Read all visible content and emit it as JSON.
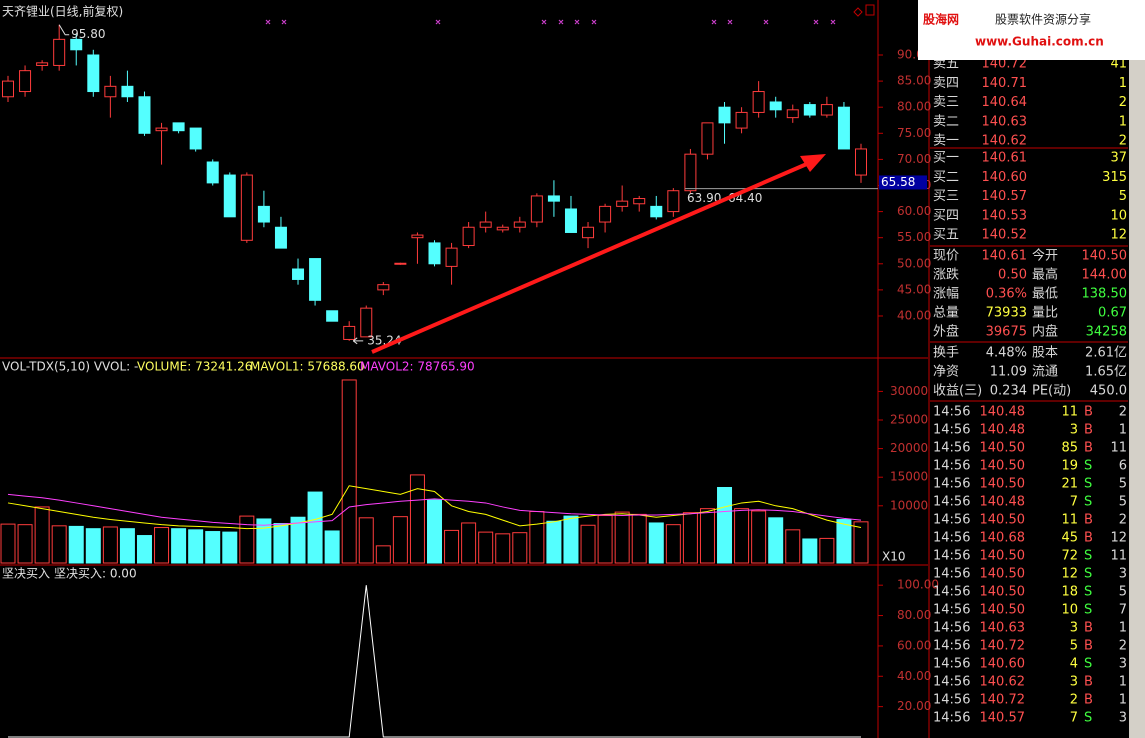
{
  "title": "天齐锂业(日线,前复权)",
  "price_chart": {
    "type": "candlestick",
    "ylim": [
      31.95,
      99.58
    ],
    "yticks": [
      {
        "value": 40,
        "label": "40.00"
      },
      {
        "value": 45,
        "label": "45.00"
      },
      {
        "value": 50,
        "label": "50.00"
      },
      {
        "value": 55,
        "label": "55.00"
      },
      {
        "value": 60,
        "label": "60.00"
      },
      {
        "value": 65,
        "label": "65.00"
      },
      {
        "value": 70,
        "label": "70.00"
      },
      {
        "value": 75,
        "label": "75.00"
      },
      {
        "value": 80,
        "label": "80.00"
      },
      {
        "value": 85,
        "label": "85.00"
      },
      {
        "value": 90,
        "label": "90.00"
      }
    ],
    "up_color": "#ff3c3c",
    "down_color": "#54ffff",
    "candles": [
      {
        "open": 82,
        "high": 86,
        "low": 81,
        "close": 85
      },
      {
        "open": 83,
        "high": 88,
        "low": 82,
        "close": 87
      },
      {
        "open": 88,
        "high": 89,
        "low": 87,
        "close": 88.5
      },
      {
        "open": 88,
        "high": 95.8,
        "low": 87,
        "close": 93
      },
      {
        "open": 93,
        "high": 94,
        "low": 88,
        "close": 91
      },
      {
        "open": 90,
        "high": 91,
        "low": 82,
        "close": 83
      },
      {
        "open": 82,
        "high": 86,
        "low": 78,
        "close": 84
      },
      {
        "open": 84,
        "high": 87,
        "low": 81,
        "close": 82
      },
      {
        "open": 82,
        "high": 83,
        "low": 74.5,
        "close": 75
      },
      {
        "open": 75.5,
        "high": 77,
        "low": 69,
        "close": 76
      },
      {
        "open": 77,
        "high": 77,
        "low": 75,
        "close": 75.5
      },
      {
        "open": 76,
        "high": 76,
        "low": 71.5,
        "close": 72
      },
      {
        "open": 69.5,
        "high": 70,
        "low": 65,
        "close": 65.5
      },
      {
        "open": 67,
        "high": 67.5,
        "low": 59,
        "close": 59
      },
      {
        "open": 54.5,
        "high": 67.5,
        "low": 54,
        "close": 67
      },
      {
        "open": 61,
        "high": 64,
        "low": 57,
        "close": 58
      },
      {
        "open": 57,
        "high": 59,
        "low": 53,
        "close": 53
      },
      {
        "open": 49,
        "high": 51,
        "low": 46,
        "close": 47
      },
      {
        "open": 51,
        "high": 51,
        "low": 42,
        "close": 43
      },
      {
        "open": 41,
        "high": 41,
        "low": 39,
        "close": 39
      },
      {
        "open": 35.5,
        "high": 39,
        "low": 35.24,
        "close": 38
      },
      {
        "open": 36,
        "high": 42,
        "low": 36,
        "close": 41.5
      },
      {
        "open": 45,
        "high": 46.5,
        "low": 44,
        "close": 46
      },
      {
        "open": 50,
        "high": 50.2,
        "low": 49.8,
        "close": 50.1
      },
      {
        "open": 55,
        "high": 56,
        "low": 50,
        "close": 55.5
      },
      {
        "open": 54,
        "high": 54.5,
        "low": 49.5,
        "close": 50
      },
      {
        "open": 49.5,
        "high": 54,
        "low": 46,
        "close": 53
      },
      {
        "open": 53.5,
        "high": 58,
        "low": 53,
        "close": 57
      },
      {
        "open": 57,
        "high": 60,
        "low": 56,
        "close": 58
      },
      {
        "open": 56.5,
        "high": 57.5,
        "low": 56,
        "close": 57
      },
      {
        "open": 57,
        "high": 59,
        "low": 56,
        "close": 58
      },
      {
        "open": 58,
        "high": 63.5,
        "low": 57,
        "close": 63
      },
      {
        "open": 63,
        "high": 66,
        "low": 59,
        "close": 62
      },
      {
        "open": 60.5,
        "high": 63,
        "low": 56,
        "close": 56
      },
      {
        "open": 55,
        "high": 58,
        "low": 53,
        "close": 57
      },
      {
        "open": 58,
        "high": 61.5,
        "low": 56,
        "close": 61
      },
      {
        "open": 61,
        "high": 65,
        "low": 60,
        "close": 62
      },
      {
        "open": 61.5,
        "high": 63,
        "low": 60,
        "close": 62.5
      },
      {
        "open": 61,
        "high": 63,
        "low": 58.5,
        "close": 59
      },
      {
        "open": 60,
        "high": 64.5,
        "low": 59,
        "close": 64
      },
      {
        "open": 64,
        "high": 72,
        "low": 63.5,
        "close": 71
      },
      {
        "open": 71,
        "high": 77,
        "low": 70,
        "close": 77
      },
      {
        "open": 80,
        "high": 81,
        "low": 73,
        "close": 77
      },
      {
        "open": 76,
        "high": 80,
        "low": 75,
        "close": 79
      },
      {
        "open": 79,
        "high": 85,
        "low": 78,
        "close": 83
      },
      {
        "open": 81,
        "high": 82,
        "low": 78,
        "close": 79.5
      },
      {
        "open": 78,
        "high": 80.5,
        "low": 77,
        "close": 79.5
      },
      {
        "open": 80.5,
        "high": 81,
        "low": 78,
        "close": 78.5
      },
      {
        "open": 78.5,
        "high": 82,
        "low": 78,
        "close": 80.5
      },
      {
        "open": 80,
        "high": 81,
        "low": 72,
        "close": 72
      },
      {
        "open": 67,
        "high": 73,
        "low": 65.5,
        "close": 72
      }
    ],
    "high_label": {
      "value": 95.8,
      "label": "95.80"
    },
    "low_label": {
      "value": 35.24,
      "label": "35.24"
    },
    "level_line": {
      "value": 64.4,
      "label": "64.40"
    },
    "level_low": {
      "value": 63.9,
      "label": "63.90"
    },
    "current_price": {
      "value": 65.58,
      "label": "65.58"
    }
  },
  "volume_chart": {
    "type": "bar",
    "indicator": "VOL-TDX(5,10) VVOL: -",
    "volume_label": "VOLUME: 73241.26",
    "mavol1_label": "MAVOL1: 57688.60",
    "mavol2_label": "MAVOL2: 78765.90",
    "unit": "X10",
    "ylim": [
      0,
      35840
    ],
    "yticks": [
      10000,
      15000,
      20000,
      25000,
      30000
    ],
    "values": [
      6800,
      6700,
      9800,
      6500,
      6400,
      6000,
      6300,
      6000,
      4800,
      6200,
      6000,
      5800,
      5500,
      5400,
      8200,
      7700,
      6900,
      8000,
      12400,
      5600,
      32000,
      7900,
      3000,
      8100,
      15400,
      11000,
      5700,
      7000,
      5400,
      5100,
      5300,
      9000,
      7300,
      8200,
      6600,
      8300,
      8900,
      8500,
      7000,
      6700,
      8800,
      9500,
      13200,
      9500,
      9100,
      7900,
      5800,
      4200,
      4300,
      7600,
      7200
    ],
    "series": [
      {
        "name": "MAVOL1",
        "color": "#ffff00",
        "values": [
          10500,
          10000,
          9500,
          9000,
          8500,
          8000,
          7600,
          7300,
          7000,
          6700,
          6500,
          6400,
          6300,
          6200,
          6000,
          6100,
          6500,
          7000,
          7600,
          8500,
          13500,
          13000,
          12500,
          12000,
          13000,
          12500,
          10000,
          9000,
          8500,
          7500,
          6500,
          6800,
          7200,
          7800,
          8200,
          8500,
          8600,
          8400,
          8000,
          8300,
          8600,
          9000,
          9800,
          10500,
          10800,
          10000,
          9500,
          8500,
          7500,
          6800,
          6200
        ]
      },
      {
        "name": "MAVOL2",
        "color": "#ff40ff",
        "values": [
          12000,
          11700,
          11400,
          11000,
          10500,
          10000,
          9500,
          9000,
          8500,
          8000,
          7700,
          7400,
          7100,
          6900,
          6700,
          6600,
          6800,
          7000,
          7200,
          7400,
          9800,
          10200,
          10500,
          10800,
          11000,
          11200,
          11000,
          10800,
          10500,
          9800,
          9200,
          9000,
          8800,
          8600,
          8500,
          8400,
          8300,
          8400,
          8400,
          8500,
          8600,
          8800,
          9000,
          9200,
          9300,
          9200,
          9000,
          8600,
          8200,
          7800,
          7500
        ]
      }
    ]
  },
  "signal_chart": {
    "type": "line",
    "name": "坚决买入",
    "value_label": "坚决买入: 0.00",
    "color": "#ffffff",
    "ylim": [
      0,
      113.3
    ],
    "yticks": [
      {
        "value": 20,
        "label": "20.00"
      },
      {
        "value": 40,
        "label": "40.00"
      },
      {
        "value": 60,
        "label": "60.00"
      },
      {
        "value": 80,
        "label": "80.00"
      },
      {
        "value": 100,
        "label": "100.00"
      }
    ],
    "values": [
      0,
      0,
      0,
      0,
      0,
      0,
      0,
      0,
      0,
      0,
      0,
      0,
      0,
      0,
      0,
      0,
      0,
      0,
      0,
      0,
      0,
      100,
      0,
      0,
      0,
      0,
      0,
      0,
      0,
      0,
      0,
      0,
      0,
      0,
      0,
      0,
      0,
      0,
      0,
      0,
      0,
      0,
      0,
      0,
      0,
      0,
      0,
      0,
      0,
      0,
      0
    ]
  },
  "watermark": {
    "brand": "股海网",
    "slogan": "股票软件资源分享",
    "url": "www.Guhai.com.cn"
  },
  "order_book": {
    "sell": [
      [
        "卖五",
        "140.72",
        "41"
      ],
      [
        "卖四",
        "140.71",
        "1"
      ],
      [
        "卖三",
        "140.64",
        "2"
      ],
      [
        "卖二",
        "140.63",
        "1"
      ],
      [
        "卖一",
        "140.62",
        "2"
      ]
    ],
    "buy": [
      [
        "买一",
        "140.61",
        "37"
      ],
      [
        "买二",
        "140.60",
        "315"
      ],
      [
        "买三",
        "140.57",
        "5"
      ],
      [
        "买四",
        "140.53",
        "10"
      ],
      [
        "买五",
        "140.52",
        "12"
      ]
    ]
  },
  "stats": [
    [
      "现价",
      "140.61",
      "今开",
      "140.50"
    ],
    [
      "涨跌",
      "0.50",
      "最高",
      "144.00"
    ],
    [
      "涨幅",
      "0.36%",
      "最低",
      "138.50"
    ],
    [
      "总量",
      "73933",
      "量比",
      "0.67"
    ],
    [
      "外盘",
      "39675",
      "内盘",
      "34258"
    ]
  ],
  "fundamentals": [
    [
      "换手",
      "4.48%",
      "股本",
      "2.61亿"
    ],
    [
      "净资",
      "11.09",
      "流通",
      "1.65亿"
    ],
    [
      "收益(三)",
      "0.234",
      "PE(动)",
      "450.0"
    ]
  ],
  "trades": [
    [
      "14:56",
      "140.48",
      "11",
      "B",
      "2"
    ],
    [
      "14:56",
      "140.48",
      "3",
      "B",
      "1"
    ],
    [
      "14:56",
      "140.50",
      "85",
      "B",
      "11"
    ],
    [
      "14:56",
      "140.50",
      "19",
      "S",
      "6"
    ],
    [
      "14:56",
      "140.50",
      "21",
      "S",
      "5"
    ],
    [
      "14:56",
      "140.48",
      "7",
      "S",
      "5"
    ],
    [
      "14:56",
      "140.50",
      "11",
      "B",
      "2"
    ],
    [
      "14:56",
      "140.68",
      "45",
      "B",
      "12"
    ],
    [
      "14:56",
      "140.50",
      "72",
      "S",
      "11"
    ],
    [
      "14:56",
      "140.50",
      "12",
      "S",
      "3"
    ],
    [
      "14:56",
      "140.50",
      "18",
      "S",
      "5"
    ],
    [
      "14:56",
      "140.50",
      "10",
      "S",
      "7"
    ],
    [
      "14:56",
      "140.63",
      "3",
      "B",
      "1"
    ],
    [
      "14:56",
      "140.72",
      "5",
      "B",
      "2"
    ],
    [
      "14:56",
      "140.60",
      "4",
      "S",
      "3"
    ],
    [
      "14:56",
      "140.62",
      "3",
      "B",
      "1"
    ],
    [
      "14:56",
      "140.72",
      "2",
      "B",
      "1"
    ],
    [
      "14:56",
      "140.57",
      "7",
      "S",
      "3"
    ]
  ]
}
